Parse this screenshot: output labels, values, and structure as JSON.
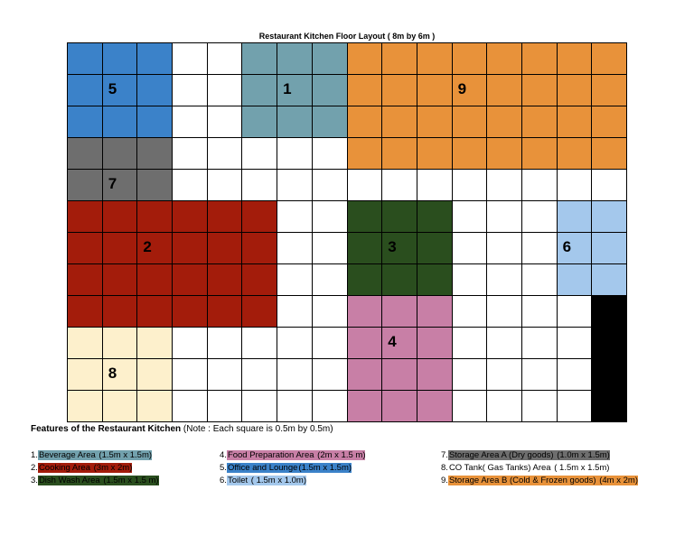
{
  "title": "Restaurant Kitchen Floor Layout ( 8m by 6m )",
  "grid": {
    "cols": 16,
    "rows": 12
  },
  "zones": [
    {
      "id": "5",
      "name": "Office and Lounge",
      "color": "#3b82c9",
      "cells": [
        [
          0,
          0,
          3,
          3
        ]
      ],
      "label_cell": [
        1,
        1
      ]
    },
    {
      "id": "1",
      "name": "Beverage Area",
      "color": "#72a1ad",
      "cells": [
        [
          5,
          0,
          3,
          3
        ]
      ],
      "label_cell": [
        6,
        1
      ]
    },
    {
      "id": "9",
      "name": "Storage Area B (Cold & Frozen goods)",
      "color": "#e8923a",
      "cells": [
        [
          8,
          0,
          8,
          4
        ]
      ],
      "label_cell": [
        11,
        1
      ]
    },
    {
      "id": "7",
      "name": "Storage Area A (Dry goods)",
      "color": "#6e6e6e",
      "cells": [
        [
          0,
          3,
          3,
          2
        ]
      ],
      "label_cell": [
        1,
        4
      ]
    },
    {
      "id": "2",
      "name": "Cooking Area",
      "color": "#a31c0b",
      "cells": [
        [
          0,
          5,
          6,
          4
        ]
      ],
      "label_cell": [
        2,
        6
      ]
    },
    {
      "id": "3",
      "name": "Dish Wash Area",
      "color": "#2a4e1e",
      "cells": [
        [
          8,
          5,
          3,
          3
        ]
      ],
      "label_cell": [
        9,
        6
      ]
    },
    {
      "id": "6",
      "name": "Toilet",
      "color": "#a4c8ec",
      "cells": [
        [
          14,
          5,
          2,
          3
        ]
      ],
      "label_cell": [
        14,
        6
      ]
    },
    {
      "id": "4",
      "name": "Food Preparation Area",
      "color": "#c87fa6",
      "cells": [
        [
          8,
          8,
          3,
          4
        ]
      ],
      "label_cell": [
        9,
        9
      ]
    },
    {
      "id": "8",
      "name": "CO Tank (Gas Tanks) Area",
      "color": "#fdf0cc",
      "cells": [
        [
          0,
          9,
          3,
          3
        ]
      ],
      "label_cell": [
        1,
        10
      ]
    },
    {
      "id": "black",
      "name": "",
      "color": "#000000",
      "cells": [
        [
          15,
          8,
          1,
          4
        ]
      ],
      "label_cell": null
    }
  ],
  "features_heading": "Features of the Restaurant Kitchen",
  "features_note": " (Note :   Each square is 0.5m by 0.5m)",
  "legend": [
    {
      "num": "1.",
      "text": "Beverage Area",
      "dims": " (1.5m x 1.5m)",
      "color": "#72a1ad",
      "col": 0,
      "row": 0
    },
    {
      "num": "2.",
      "text": "Cooking Area",
      "dims": "   (3m x 2m)",
      "color": "#a31c0b",
      "col": 0,
      "row": 1
    },
    {
      "num": "3.",
      "text": "Dish Wash Area",
      "dims": " (1.5m x 1.5 m)",
      "color": "#2a4e1e",
      "col": 0,
      "row": 2
    },
    {
      "num": "4.",
      "text": "Food Preparation Area",
      "dims": " (2m x 1.5 m)",
      "color": "#c87fa6",
      "col": 1,
      "row": 0
    },
    {
      "num": "5.",
      "text": "Office and Lounge",
      "dims": "(1.5m x 1.5m)",
      "color": "#3b82c9",
      "col": 1,
      "row": 1
    },
    {
      "num": "6.",
      "text": "Toilet",
      "dims": " ( 1.5m x 1.0m)",
      "color": "#a4c8ec",
      "col": 1,
      "row": 2
    },
    {
      "num": "7.",
      "text": "Storage Area A (Dry goods)",
      "dims": " (1.0m x 1.5m)",
      "color": "#6e6e6e",
      "col": 2,
      "row": 0
    },
    {
      "num": "8.",
      "text": "CO Tank( Gas Tanks) Area",
      "dims": " ( 1.5m x 1.5m)",
      "color": "",
      "col": 2,
      "row": 1
    },
    {
      "num": "9.",
      "text": "Storage Area B (Cold & Frozen goods)",
      "dims": " (4m x 2m)",
      "color": "#e8923a",
      "col": 2,
      "row": 2
    }
  ]
}
